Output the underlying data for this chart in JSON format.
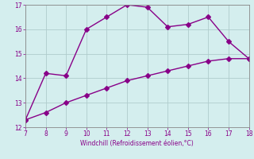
{
  "xlabel": "Windchill (Refroidissement éolien,°C)",
  "x_upper": [
    7,
    8,
    9,
    10,
    11,
    12,
    13,
    14,
    15,
    16,
    17,
    18
  ],
  "y_upper": [
    12.3,
    14.2,
    14.1,
    16.0,
    16.5,
    17.0,
    16.9,
    16.1,
    16.2,
    16.5,
    15.5,
    14.8
  ],
  "x_lower": [
    7,
    8,
    9,
    10,
    11,
    12,
    13,
    14,
    15,
    16,
    17,
    18
  ],
  "y_lower": [
    12.3,
    12.6,
    13.0,
    13.3,
    13.6,
    13.9,
    14.1,
    14.3,
    14.5,
    14.7,
    14.8,
    14.8
  ],
  "line_color": "#880088",
  "bg_color": "#d4eeee",
  "grid_color": "#b0cccc",
  "axis_color": "#888888",
  "xlim": [
    7,
    18
  ],
  "ylim": [
    12,
    17
  ],
  "xticks": [
    7,
    8,
    9,
    10,
    11,
    12,
    13,
    14,
    15,
    16,
    17,
    18
  ],
  "yticks": [
    12,
    13,
    14,
    15,
    16,
    17
  ],
  "markersize": 3,
  "linewidth": 1.0
}
